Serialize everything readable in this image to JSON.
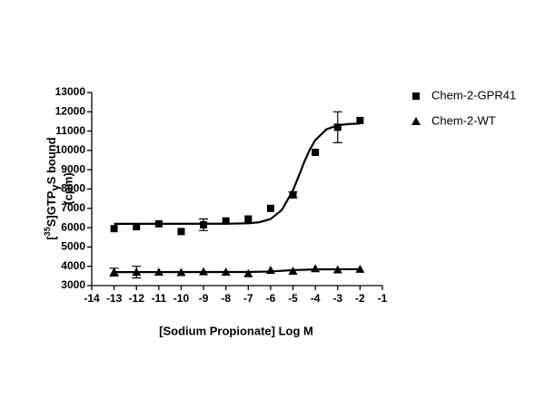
{
  "chart_data": {
    "type": "scatter",
    "xlabel": "[Sodium Propionate] Log M",
    "ylabel": [
      "[",
      "35",
      "S]GTP",
      "γ",
      "S bound",
      "(cpm)"
    ],
    "xlim": [
      -14,
      -1
    ],
    "xticks": [
      -14,
      -13,
      -12,
      -11,
      -10,
      -9,
      -8,
      -7,
      -6,
      -5,
      -4,
      -3,
      -2,
      -1
    ],
    "ylim": [
      3000,
      13000
    ],
    "yticks": [
      3000,
      4000,
      5000,
      6000,
      7000,
      8000,
      9000,
      10000,
      11000,
      12000,
      13000
    ],
    "grid": false,
    "legend": "right",
    "series": [
      {
        "name": "Chem-2-GPR41",
        "color": "#000000",
        "marker": "square",
        "x": [
          -13,
          -12,
          -11,
          -10,
          -9,
          -8,
          -7,
          -6,
          -5,
          -4,
          -3,
          -2
        ],
        "values": [
          5950,
          6050,
          6200,
          5800,
          6150,
          6350,
          6450,
          7000,
          7700,
          9900,
          11200,
          11550
        ],
        "errors": [
          null,
          null,
          null,
          null,
          300,
          null,
          null,
          null,
          150,
          null,
          800,
          null
        ],
        "fit_x": [
          -13,
          -8,
          -7,
          -6.5,
          -6,
          -5.5,
          -5,
          -4.75,
          -4.5,
          -4.25,
          -4,
          -3.5,
          -3,
          -2.5,
          -2
        ],
        "fit_values": [
          6200,
          6203,
          6226,
          6281,
          6448,
          6911,
          7936,
          8650,
          9388,
          10038,
          10535,
          11092,
          11298,
          11367,
          11390
        ]
      },
      {
        "name": "Chem-2-WT",
        "color": "#000000",
        "marker": "triangle",
        "x": [
          -13,
          -12,
          -11,
          -10,
          -9,
          -8,
          -7,
          -6,
          -5,
          -4,
          -3,
          -2
        ],
        "values": [
          3700,
          3700,
          3700,
          3680,
          3720,
          3700,
          3620,
          3800,
          3750,
          3880,
          3820,
          3850
        ],
        "errors": [
          200,
          300,
          null,
          null,
          null,
          null,
          null,
          null,
          null,
          null,
          null,
          null
        ],
        "fit_x": [
          -13,
          -7,
          -6,
          -5,
          -4,
          -2
        ],
        "fit_values": [
          3700,
          3705,
          3730,
          3800,
          3840,
          3850
        ]
      }
    ]
  }
}
